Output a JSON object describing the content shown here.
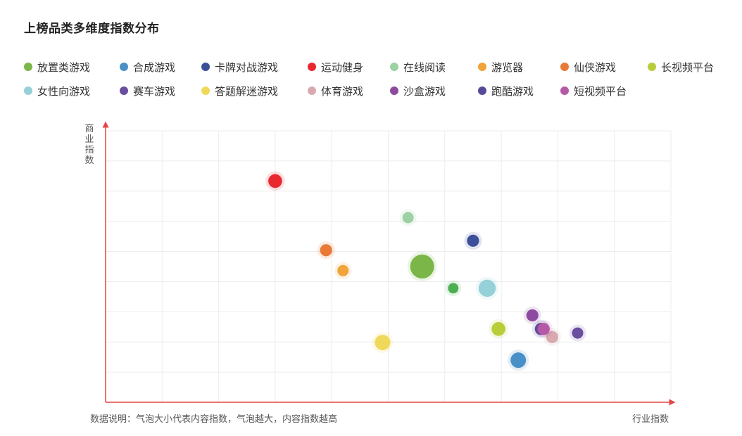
{
  "title": "上榜品类多维度指数分布",
  "note": "数据说明：气泡大小代表内容指数，气泡越大，内容指数越高",
  "chart_data": {
    "type": "scatter",
    "title": "上榜品类多维度指数分布",
    "xlabel": "行业指数",
    "ylabel": "商业指数",
    "xlim": [
      0,
      10
    ],
    "ylim": [
      0,
      10
    ],
    "grid": true,
    "legend_position": "top",
    "size_meaning": "内容指数",
    "series": [
      {
        "name": "放置类游戏",
        "color": "#7ab648",
        "x": 5.6,
        "y": 5.0,
        "size": 10
      },
      {
        "name": "合成游戏",
        "color": "#4a90c8",
        "x": 7.3,
        "y": 1.55,
        "size": 5
      },
      {
        "name": "卡牌对战游戏",
        "color": "#3c4f9a",
        "x": 6.5,
        "y": 5.95,
        "size": 3
      },
      {
        "name": "运动健身",
        "color": "#e8282e",
        "x": 3.0,
        "y": 8.15,
        "size": 4
      },
      {
        "name": "在线阅读",
        "color": "#9dd1a3",
        "x": 5.35,
        "y": 6.8,
        "size": 2.5
      },
      {
        "name": "游览器",
        "color": "#f0a43a",
        "x": 4.2,
        "y": 4.85,
        "size": 2.5
      },
      {
        "name": "仙侠游戏",
        "color": "#e87a35",
        "x": 3.9,
        "y": 5.6,
        "size": 3
      },
      {
        "name": "长视频平台",
        "color": "#b9cd3a",
        "x": 6.95,
        "y": 2.7,
        "size": 4
      },
      {
        "name": "女性向游戏",
        "color": "#96d0d8",
        "x": 6.75,
        "y": 4.2,
        "size": 6
      },
      {
        "name": "赛车游戏",
        "color": "#6a4ea0",
        "x": 8.35,
        "y": 2.55,
        "size": 2.5
      },
      {
        "name": "答题解迷游戏",
        "color": "#f0d85a",
        "x": 4.9,
        "y": 2.2,
        "size": 5
      },
      {
        "name": "体育游戏",
        "color": "#d8aab0",
        "x": 7.9,
        "y": 2.4,
        "size": 3
      },
      {
        "name": "沙盒游戏",
        "color": "#8e4aa0",
        "x": 7.55,
        "y": 3.2,
        "size": 3
      },
      {
        "name": "跑酷游戏",
        "color": "#554a98",
        "x": 7.7,
        "y": 2.7,
        "size": 3
      },
      {
        "name": "短视频平台",
        "color": "#b658a8",
        "x": 7.75,
        "y": 2.7,
        "size": 3
      },
      {
        "name": "",
        "color": "#4caf50",
        "x": 6.15,
        "y": 4.2,
        "size": 2
      }
    ]
  },
  "legend": [
    {
      "label": "放置类游戏",
      "color": "#7ab648"
    },
    {
      "label": "合成游戏",
      "color": "#4a90c8"
    },
    {
      "label": "卡牌对战游戏",
      "color": "#3c4f9a"
    },
    {
      "label": "运动健身",
      "color": "#e8282e"
    },
    {
      "label": "在线阅读",
      "color": "#9dd1a3"
    },
    {
      "label": "游览器",
      "color": "#f0a43a"
    },
    {
      "label": "仙侠游戏",
      "color": "#e87a35"
    },
    {
      "label": "长视频平台",
      "color": "#b9cd3a"
    },
    {
      "label": "女性向游戏",
      "color": "#96d0d8"
    },
    {
      "label": "赛车游戏",
      "color": "#6a4ea0"
    },
    {
      "label": "答题解迷游戏",
      "color": "#f0d85a"
    },
    {
      "label": "体育游戏",
      "color": "#d8aab0"
    },
    {
      "label": "沙盒游戏",
      "color": "#8e4aa0"
    },
    {
      "label": "跑酷游戏",
      "color": "#554a98"
    },
    {
      "label": "短视频平台",
      "color": "#b658a8"
    }
  ]
}
